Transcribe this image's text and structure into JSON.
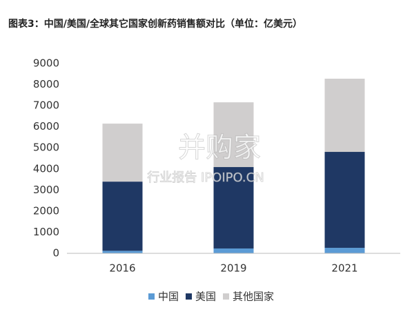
{
  "chart_data": {
    "type": "stacked_bar",
    "title": "图表3：中国/美国/全球其它国家创新药销售额对比（单位：亿美元）",
    "categories": [
      "2016",
      "2019",
      "2021"
    ],
    "series": [
      {
        "name": "中国",
        "color": "#5b9bd5",
        "values": [
          120,
          230,
          260
        ]
      },
      {
        "name": "美国",
        "color": "#1f3864",
        "values": [
          3280,
          3860,
          4550
        ]
      },
      {
        "name": "其他国家",
        "color": "#d0cece",
        "values": [
          2750,
          3070,
          3470
        ]
      }
    ],
    "ylim": [
      0,
      9000
    ],
    "yticks": [
      0,
      1000,
      2000,
      3000,
      4000,
      5000,
      6000,
      7000,
      8000,
      9000
    ],
    "grid": false,
    "legend": "bottom",
    "watermark": [
      "并购家",
      "行业报告 IPOIPO.CN"
    ]
  }
}
